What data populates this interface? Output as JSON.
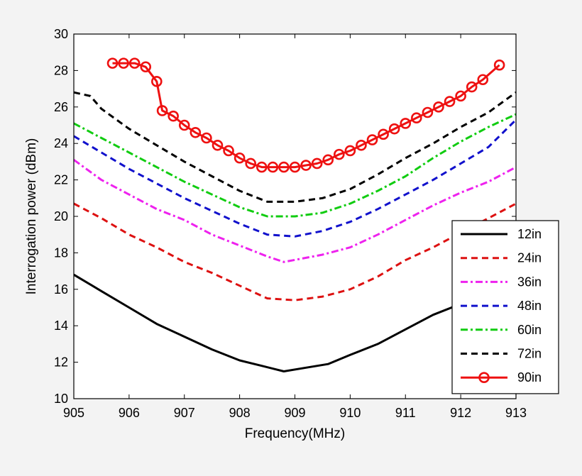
{
  "chart_data": {
    "type": "line",
    "title": "",
    "xlabel": "Frequency(MHz)",
    "ylabel": "Interrogation power (dBm)",
    "xlim": [
      905,
      913
    ],
    "ylim": [
      10,
      30
    ],
    "xticks": [
      905,
      906,
      907,
      908,
      909,
      910,
      911,
      912,
      913
    ],
    "yticks": [
      10,
      12,
      14,
      16,
      18,
      20,
      22,
      24,
      26,
      28,
      30
    ],
    "grid": false,
    "legend_position": "bottom-right",
    "series": [
      {
        "name": "12in",
        "color": "#000000",
        "style": "solid",
        "marker": "none",
        "x": [
          905,
          905.5,
          906,
          906.5,
          907,
          907.5,
          908,
          908.4,
          908.8,
          909.2,
          909.6,
          910,
          910.5,
          911,
          911.5,
          912,
          912.3
        ],
        "y": [
          16.8,
          15.9,
          15.0,
          14.1,
          13.4,
          12.7,
          12.1,
          11.8,
          11.5,
          11.7,
          11.9,
          12.4,
          13.0,
          13.8,
          14.6,
          15.2,
          15.4
        ]
      },
      {
        "name": "24in",
        "color": "#dd1111",
        "style": "dashed",
        "marker": "none",
        "x": [
          905,
          905.5,
          906,
          906.5,
          907,
          907.5,
          908,
          908.5,
          909,
          909.5,
          910,
          910.5,
          911,
          911.5,
          912,
          912.5,
          913
        ],
        "y": [
          20.7,
          19.9,
          19.0,
          18.3,
          17.5,
          16.9,
          16.2,
          15.5,
          15.4,
          15.6,
          16.0,
          16.7,
          17.6,
          18.3,
          19.1,
          19.9,
          20.7
        ]
      },
      {
        "name": "36in",
        "color": "#ee22ee",
        "style": "dashdot",
        "marker": "none",
        "x": [
          905,
          905.5,
          906,
          906.5,
          907,
          907.5,
          908,
          908.5,
          908.8,
          909.5,
          910,
          910.5,
          911,
          911.5,
          912,
          912.5,
          913
        ],
        "y": [
          23.1,
          22.0,
          21.2,
          20.4,
          19.8,
          19.0,
          18.4,
          17.8,
          17.5,
          17.9,
          18.3,
          19.0,
          19.8,
          20.6,
          21.3,
          21.9,
          22.7
        ]
      },
      {
        "name": "48in",
        "color": "#1111cc",
        "style": "dashed",
        "marker": "none",
        "x": [
          905,
          905.5,
          906,
          906.5,
          907,
          907.5,
          908,
          908.5,
          909,
          909.5,
          910,
          910.5,
          911,
          911.5,
          912,
          912.5,
          913
        ],
        "y": [
          24.4,
          23.5,
          22.6,
          21.8,
          21.0,
          20.3,
          19.6,
          19.0,
          18.9,
          19.2,
          19.7,
          20.4,
          21.2,
          22.0,
          22.9,
          23.8,
          25.3
        ]
      },
      {
        "name": "60in",
        "color": "#11cc11",
        "style": "dashdot",
        "marker": "none",
        "x": [
          905,
          905.5,
          906,
          906.5,
          907,
          907.5,
          908,
          908.5,
          909,
          909.5,
          910,
          910.5,
          911,
          911.5,
          912,
          912.5,
          913
        ],
        "y": [
          25.1,
          24.3,
          23.5,
          22.7,
          21.9,
          21.2,
          20.5,
          20.0,
          20.0,
          20.2,
          20.7,
          21.4,
          22.2,
          23.2,
          24.1,
          24.9,
          25.6
        ]
      },
      {
        "name": "72in",
        "color": "#000000",
        "style": "dashed",
        "marker": "none",
        "x": [
          905,
          905.3,
          905.5,
          906,
          906.5,
          907,
          907.5,
          908,
          908.5,
          909,
          909.5,
          910,
          910.5,
          911,
          911.5,
          912,
          912.5,
          913
        ],
        "y": [
          26.8,
          26.6,
          25.9,
          24.8,
          23.9,
          23.0,
          22.2,
          21.4,
          20.8,
          20.8,
          21.0,
          21.5,
          22.3,
          23.2,
          24.0,
          24.9,
          25.7,
          26.8
        ]
      },
      {
        "name": "90in",
        "color": "#ee1111",
        "style": "solid",
        "marker": "circle",
        "x": [
          905.7,
          905.9,
          906.1,
          906.3,
          906.5,
          906.6,
          906.8,
          907,
          907.2,
          907.4,
          907.6,
          907.8,
          908,
          908.2,
          908.4,
          908.6,
          908.8,
          909,
          909.2,
          909.4,
          909.6,
          909.8,
          910,
          910.2,
          910.4,
          910.6,
          910.8,
          911,
          911.2,
          911.4,
          911.6,
          911.8,
          912,
          912.2,
          912.4,
          912.7
        ],
        "y": [
          28.4,
          28.4,
          28.4,
          28.2,
          27.4,
          25.8,
          25.5,
          25.0,
          24.6,
          24.3,
          23.9,
          23.6,
          23.2,
          22.9,
          22.7,
          22.7,
          22.7,
          22.7,
          22.8,
          22.9,
          23.1,
          23.4,
          23.6,
          23.9,
          24.2,
          24.5,
          24.8,
          25.1,
          25.4,
          25.7,
          26.0,
          26.3,
          26.6,
          27.1,
          27.5,
          28.3
        ]
      }
    ]
  }
}
